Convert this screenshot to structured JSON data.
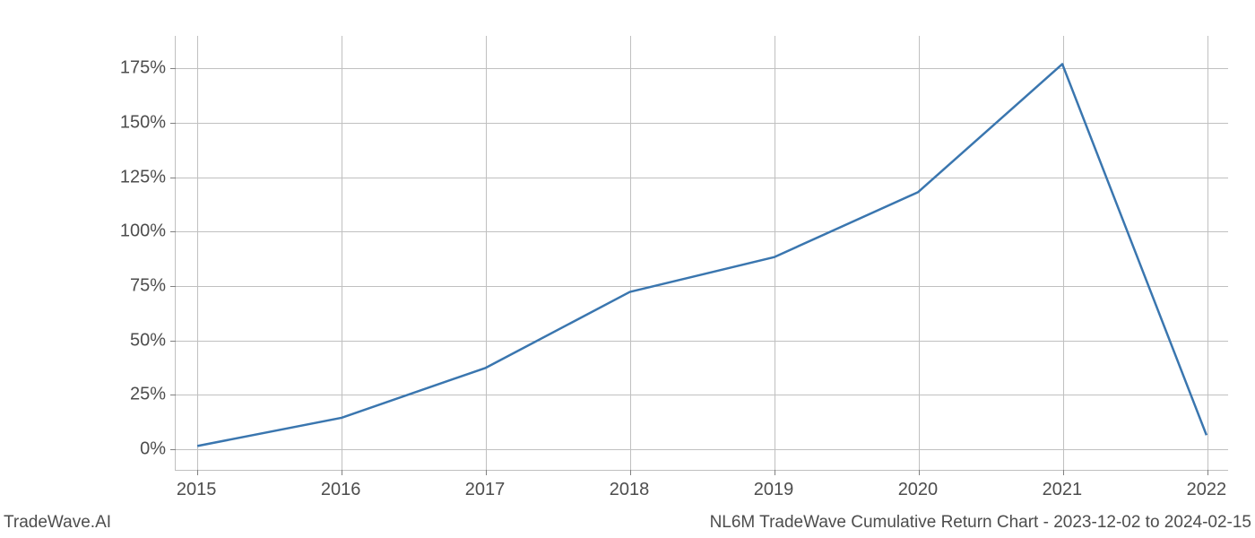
{
  "chart": {
    "type": "line",
    "background_color": "#ffffff",
    "grid_color": "#c0c0c0",
    "axis_color": "#808080",
    "text_color": "#4d4d4d",
    "line_color": "#3a76af",
    "line_width": 2.5,
    "label_fontsize": 20,
    "footer_fontsize": 19,
    "x": {
      "ticks": [
        2015,
        2016,
        2017,
        2018,
        2019,
        2020,
        2021,
        2022
      ],
      "lim": [
        2014.85,
        2022.15
      ]
    },
    "y": {
      "ticks": [
        0,
        25,
        50,
        75,
        100,
        125,
        150,
        175
      ],
      "tick_labels": [
        "0%",
        "25%",
        "50%",
        "75%",
        "100%",
        "125%",
        "150%",
        "175%"
      ],
      "lim": [
        -10,
        190
      ]
    },
    "series": {
      "x": [
        2015,
        2016,
        2017,
        2018,
        2019,
        2020,
        2021,
        2022
      ],
      "y": [
        1,
        14,
        37,
        72,
        88,
        118,
        177,
        6
      ]
    }
  },
  "footer": {
    "left": "TradeWave.AI",
    "right": "NL6M TradeWave Cumulative Return Chart - 2023-12-02 to 2024-02-15"
  }
}
